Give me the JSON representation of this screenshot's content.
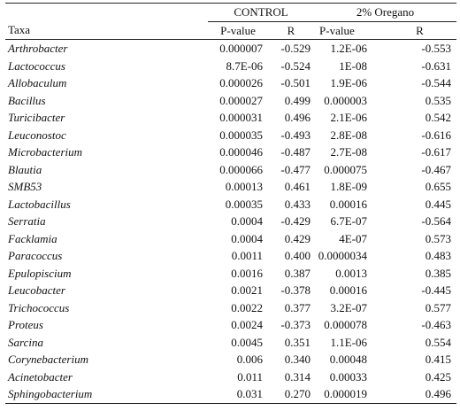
{
  "table": {
    "group_headers": {
      "control": "CONTROL",
      "oregano": "2% Oregano"
    },
    "column_headers": {
      "taxa": "Taxa",
      "control_pvalue": "P-value",
      "control_r": "R",
      "oregano_pvalue": "P-value",
      "oregano_r": "R"
    },
    "rows": [
      {
        "taxa": "Arthrobacter",
        "control_p": "0.000007",
        "control_r": "-0.529",
        "oregano_p": "1.2E-06",
        "oregano_r": "-0.553"
      },
      {
        "taxa": "Lactococcus",
        "control_p": "8.7E-06",
        "control_r": "-0.524",
        "oregano_p": "1E-08",
        "oregano_r": "-0.631"
      },
      {
        "taxa": "Allobaculum",
        "control_p": "0.000026",
        "control_r": "-0.501",
        "oregano_p": "1.9E-06",
        "oregano_r": "-0.544"
      },
      {
        "taxa": "Bacillus",
        "control_p": "0.000027",
        "control_r": "0.499",
        "oregano_p": "0.000003",
        "oregano_r": "0.535"
      },
      {
        "taxa": "Turicibacter",
        "control_p": "0.000031",
        "control_r": "0.496",
        "oregano_p": "2.1E-06",
        "oregano_r": "0.542"
      },
      {
        "taxa": "Leuconostoc",
        "control_p": "0.000035",
        "control_r": "-0.493",
        "oregano_p": "2.8E-08",
        "oregano_r": "-0.616"
      },
      {
        "taxa": "Microbacterium",
        "control_p": "0.000046",
        "control_r": "-0.487",
        "oregano_p": "2.7E-08",
        "oregano_r": "-0.617"
      },
      {
        "taxa": "Blautia",
        "control_p": "0.000066",
        "control_r": "-0.477",
        "oregano_p": "0.000075",
        "oregano_r": "-0.467"
      },
      {
        "taxa": "SMB53",
        "control_p": "0.00013",
        "control_r": "0.461",
        "oregano_p": "1.8E-09",
        "oregano_r": "0.655"
      },
      {
        "taxa": "Lactobacillus",
        "control_p": "0.00035",
        "control_r": "0.433",
        "oregano_p": "0.00016",
        "oregano_r": "0.445"
      },
      {
        "taxa": "Serratia",
        "control_p": "0.0004",
        "control_r": "-0.429",
        "oregano_p": "6.7E-07",
        "oregano_r": "-0.564"
      },
      {
        "taxa": "Facklamia",
        "control_p": "0.0004",
        "control_r": "0.429",
        "oregano_p": "4E-07",
        "oregano_r": "0.573"
      },
      {
        "taxa": "Paracoccus",
        "control_p": "0.0011",
        "control_r": "0.400",
        "oregano_p": "0.0000034",
        "oregano_r": "0.483"
      },
      {
        "taxa": "Epulopiscium",
        "control_p": "0.0016",
        "control_r": "0.387",
        "oregano_p": "0.0013",
        "oregano_r": "0.385"
      },
      {
        "taxa": "Leucobacter",
        "control_p": "0.0021",
        "control_r": "-0.378",
        "oregano_p": "0.00016",
        "oregano_r": "-0.445"
      },
      {
        "taxa": "Trichococcus",
        "control_p": "0.0022",
        "control_r": "0.377",
        "oregano_p": "3.2E-07",
        "oregano_r": "0.577"
      },
      {
        "taxa": "Proteus",
        "control_p": "0.0024",
        "control_r": "-0.373",
        "oregano_p": "0.000078",
        "oregano_r": "-0.463"
      },
      {
        "taxa": "Sarcina",
        "control_p": "0.0045",
        "control_r": "0.351",
        "oregano_p": "1.1E-06",
        "oregano_r": "0.554"
      },
      {
        "taxa": "Corynebacterium",
        "control_p": "0.006",
        "control_r": "0.340",
        "oregano_p": "0.00048",
        "oregano_r": "0.415"
      },
      {
        "taxa": "Acinetobacter",
        "control_p": "0.011",
        "control_r": "0.314",
        "oregano_p": "0.00033",
        "oregano_r": "0.425"
      },
      {
        "taxa": "Sphingobacterium",
        "control_p": "0.031",
        "control_r": "0.270",
        "oregano_p": "0.000019",
        "oregano_r": "0.496"
      }
    ]
  }
}
